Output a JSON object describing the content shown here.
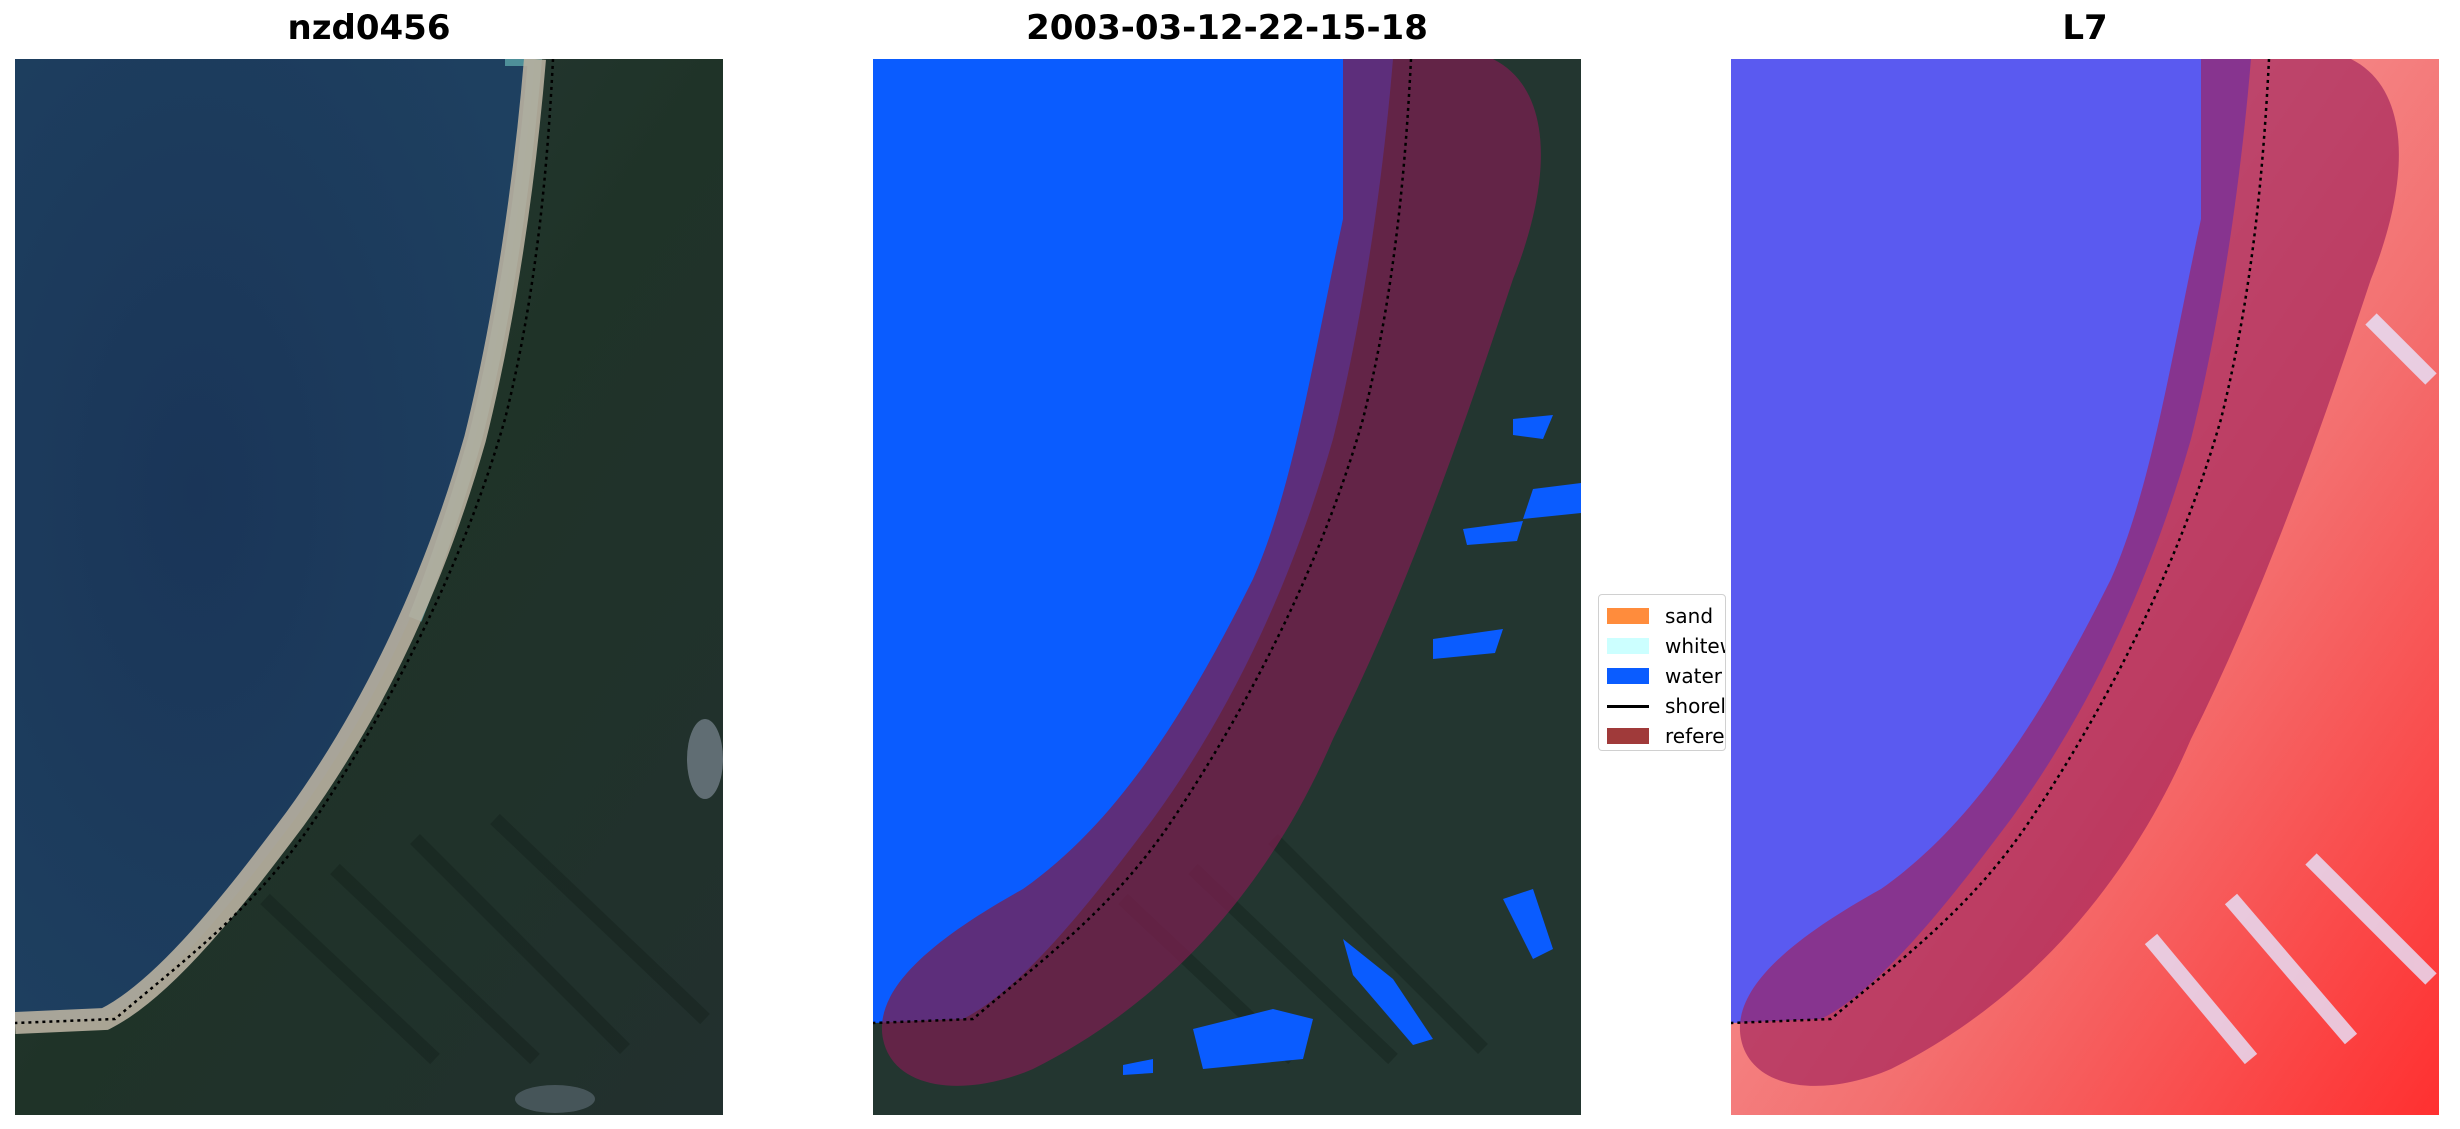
{
  "panels": [
    {
      "title": "nzd0456"
    },
    {
      "title": "2003-03-12-22-15-18"
    },
    {
      "title": "L7"
    }
  ],
  "legend": {
    "items": [
      {
        "label": "sand",
        "color": "#ff8c3c",
        "kind": "patch"
      },
      {
        "label": "whitewater",
        "color": "#ccffff",
        "kind": "patch"
      },
      {
        "label": "water",
        "color": "#0a5cff",
        "kind": "patch"
      },
      {
        "label": "shoreline",
        "color": "#000000",
        "kind": "line"
      },
      {
        "label": "reference shoreline buffer",
        "color": "#a03a3a",
        "kind": "patch"
      }
    ]
  },
  "colors": {
    "ocean": "#1b3a5c",
    "land": "#233630",
    "beach": "#c7bfae",
    "water_class": "#0a5cff",
    "buffer": "#7a1f4f",
    "index_water": "#5a5af0",
    "index_land": "#f06060"
  }
}
